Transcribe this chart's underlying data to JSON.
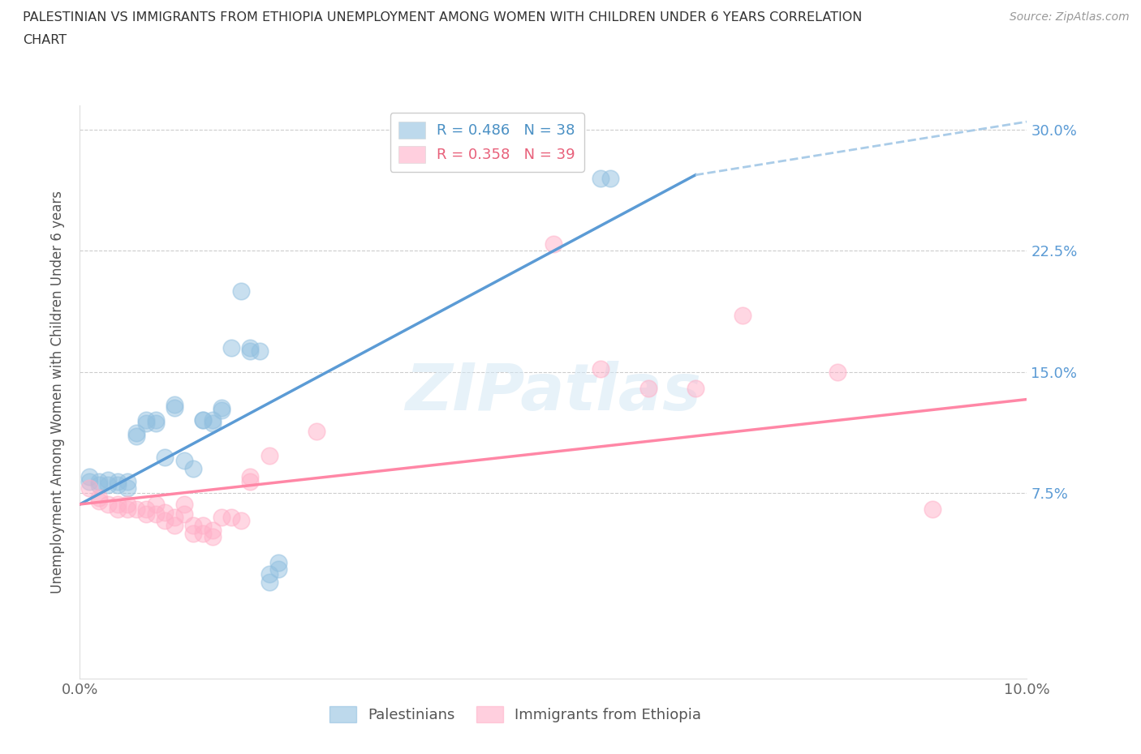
{
  "title_line1": "PALESTINIAN VS IMMIGRANTS FROM ETHIOPIA UNEMPLOYMENT AMONG WOMEN WITH CHILDREN UNDER 6 YEARS CORRELATION",
  "title_line2": "CHART",
  "source": "Source: ZipAtlas.com",
  "ylabel": "Unemployment Among Women with Children Under 6 years",
  "xlim": [
    0.0,
    0.1
  ],
  "ylim": [
    -0.04,
    0.315
  ],
  "ytick_positions": [
    0.075,
    0.15,
    0.225,
    0.3
  ],
  "ytick_labels": [
    "7.5%",
    "15.0%",
    "22.5%",
    "30.0%"
  ],
  "watermark": "ZIPatlas",
  "blue_scatter": [
    [
      0.001,
      0.085
    ],
    [
      0.001,
      0.082
    ],
    [
      0.002,
      0.082
    ],
    [
      0.002,
      0.08
    ],
    [
      0.003,
      0.083
    ],
    [
      0.003,
      0.08
    ],
    [
      0.004,
      0.082
    ],
    [
      0.004,
      0.08
    ],
    [
      0.005,
      0.082
    ],
    [
      0.005,
      0.078
    ],
    [
      0.006,
      0.112
    ],
    [
      0.006,
      0.11
    ],
    [
      0.007,
      0.12
    ],
    [
      0.007,
      0.118
    ],
    [
      0.008,
      0.12
    ],
    [
      0.008,
      0.118
    ],
    [
      0.009,
      0.097
    ],
    [
      0.01,
      0.13
    ],
    [
      0.01,
      0.128
    ],
    [
      0.011,
      0.095
    ],
    [
      0.012,
      0.09
    ],
    [
      0.013,
      0.12
    ],
    [
      0.013,
      0.12
    ],
    [
      0.014,
      0.12
    ],
    [
      0.014,
      0.118
    ],
    [
      0.015,
      0.128
    ],
    [
      0.015,
      0.126
    ],
    [
      0.016,
      0.165
    ],
    [
      0.017,
      0.2
    ],
    [
      0.018,
      0.165
    ],
    [
      0.018,
      0.163
    ],
    [
      0.019,
      0.163
    ],
    [
      0.02,
      0.025
    ],
    [
      0.02,
      0.02
    ],
    [
      0.021,
      0.032
    ],
    [
      0.021,
      0.028
    ],
    [
      0.055,
      0.27
    ],
    [
      0.056,
      0.27
    ]
  ],
  "pink_scatter": [
    [
      0.001,
      0.078
    ],
    [
      0.002,
      0.072
    ],
    [
      0.002,
      0.07
    ],
    [
      0.003,
      0.068
    ],
    [
      0.004,
      0.068
    ],
    [
      0.004,
      0.065
    ],
    [
      0.005,
      0.068
    ],
    [
      0.005,
      0.065
    ],
    [
      0.006,
      0.065
    ],
    [
      0.007,
      0.065
    ],
    [
      0.007,
      0.062
    ],
    [
      0.008,
      0.068
    ],
    [
      0.008,
      0.062
    ],
    [
      0.009,
      0.063
    ],
    [
      0.009,
      0.058
    ],
    [
      0.01,
      0.06
    ],
    [
      0.01,
      0.055
    ],
    [
      0.011,
      0.068
    ],
    [
      0.011,
      0.062
    ],
    [
      0.012,
      0.055
    ],
    [
      0.012,
      0.05
    ],
    [
      0.013,
      0.055
    ],
    [
      0.013,
      0.05
    ],
    [
      0.014,
      0.052
    ],
    [
      0.014,
      0.048
    ],
    [
      0.015,
      0.06
    ],
    [
      0.016,
      0.06
    ],
    [
      0.017,
      0.058
    ],
    [
      0.018,
      0.085
    ],
    [
      0.018,
      0.082
    ],
    [
      0.02,
      0.098
    ],
    [
      0.025,
      0.113
    ],
    [
      0.05,
      0.229
    ],
    [
      0.055,
      0.152
    ],
    [
      0.06,
      0.14
    ],
    [
      0.065,
      0.14
    ],
    [
      0.07,
      0.185
    ],
    [
      0.08,
      0.15
    ],
    [
      0.09,
      0.065
    ]
  ],
  "blue_line_x": [
    0.0,
    0.065
  ],
  "blue_line_y": [
    0.068,
    0.272
  ],
  "pink_line_x": [
    0.0,
    0.1
  ],
  "pink_line_y": [
    0.068,
    0.133
  ],
  "dash_line_x": [
    0.065,
    0.1
  ],
  "dash_line_y": [
    0.272,
    0.305
  ],
  "blue_color": "#5B9BD5",
  "pink_color": "#FF87A6",
  "blue_scatter_color": "#92C0E0",
  "pink_scatter_color": "#FFB0C8",
  "grid_color": "#cccccc",
  "background_color": "#ffffff",
  "legend_entries": [
    {
      "label": "R = 0.486   N = 38",
      "color": "#92C0E0"
    },
    {
      "label": "R = 0.358   N = 39",
      "color": "#FFB0C8"
    }
  ]
}
